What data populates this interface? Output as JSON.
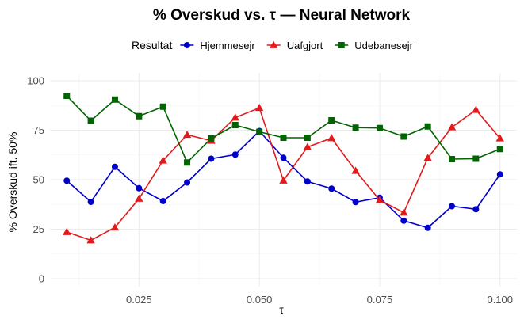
{
  "chart_data": {
    "type": "line",
    "title": "% Overskud vs. τ — Neural Network",
    "xlabel": "τ",
    "ylabel": "% Overskud ift. 50%",
    "xlim": [
      0.0065,
      0.1035
    ],
    "ylim": [
      -4,
      104
    ],
    "x_ticks": [
      0.025,
      0.05,
      0.075,
      0.1
    ],
    "x_tick_labels": [
      "0.025",
      "0.050",
      "0.075",
      "0.100"
    ],
    "y_ticks": [
      0,
      25,
      50,
      75,
      100
    ],
    "y_tick_labels": [
      "0",
      "25",
      "50",
      "75",
      "100"
    ],
    "grid": true,
    "legend": {
      "title": "Resultat",
      "position": "top"
    },
    "x": [
      0.01,
      0.015,
      0.02,
      0.025,
      0.03,
      0.035,
      0.04,
      0.045,
      0.05,
      0.055,
      0.06,
      0.065,
      0.07,
      0.075,
      0.08,
      0.085,
      0.09,
      0.095,
      0.1
    ],
    "series": [
      {
        "name": "Hjemmesejr",
        "color": "#0000cd",
        "marker": "circle",
        "values": [
          49.5,
          38.8,
          56.5,
          45.7,
          39.2,
          48.6,
          60.6,
          62.7,
          74.6,
          61.1,
          49.1,
          45.5,
          38.7,
          40.9,
          29.3,
          25.7,
          36.6,
          35.1,
          52.7
        ]
      },
      {
        "name": "Uafgjort",
        "color": "#e31a1c",
        "marker": "triangle",
        "values": [
          23.6,
          19.4,
          25.9,
          40.4,
          59.7,
          72.7,
          69.7,
          81.4,
          86.3,
          49.6,
          66.5,
          71.0,
          54.5,
          39.7,
          33.4,
          61.0,
          76.5,
          85.3,
          70.9
        ]
      },
      {
        "name": "Udebanesejr",
        "color": "#006400",
        "marker": "square",
        "values": [
          92.4,
          79.8,
          90.5,
          82.1,
          86.9,
          58.7,
          70.9,
          77.6,
          74.2,
          71.2,
          71.2,
          80.0,
          76.3,
          76.1,
          71.8,
          76.9,
          60.4,
          60.6,
          65.5
        ]
      }
    ]
  }
}
